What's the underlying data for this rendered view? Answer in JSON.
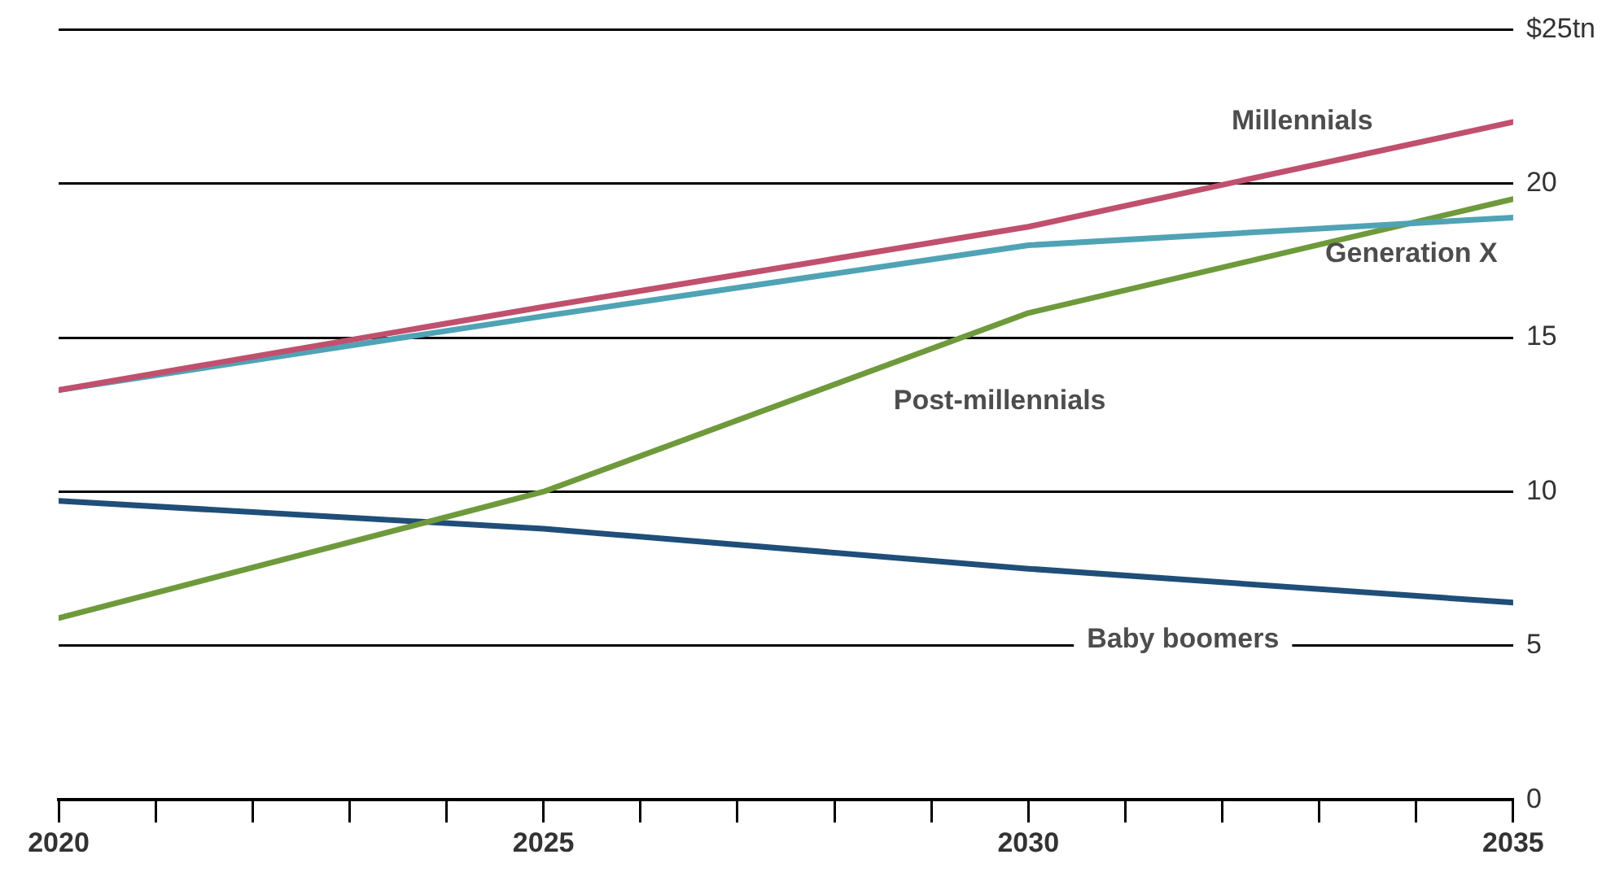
{
  "chart_data": {
    "type": "line",
    "x": [
      2020,
      2025,
      2030,
      2035
    ],
    "series": [
      {
        "name": "Millennials",
        "color": "#c0506e",
        "values": [
          13.3,
          16.0,
          18.6,
          22.0
        ]
      },
      {
        "name": "Generation X",
        "color": "#4fa3b5",
        "values": [
          13.3,
          15.7,
          18.0,
          18.9
        ]
      },
      {
        "name": "Post-millennials",
        "color": "#6f9a3c",
        "values": [
          5.9,
          10.0,
          15.8,
          19.5
        ]
      },
      {
        "name": "Baby boomers",
        "color": "#1f4e79",
        "values": [
          9.7,
          8.8,
          7.5,
          6.4
        ]
      }
    ],
    "xlim": [
      2020,
      2035
    ],
    "xticks": [
      2020,
      {
        "value": 2021,
        "label": null
      },
      {
        "value": 2022,
        "label": null
      },
      {
        "value": 2023,
        "label": null
      },
      {
        "value": 2024,
        "label": null
      },
      2025,
      {
        "value": 2026,
        "label": null
      },
      {
        "value": 2027,
        "label": null
      },
      {
        "value": 2028,
        "label": null
      },
      {
        "value": 2029,
        "label": null
      },
      2030,
      {
        "value": 2031,
        "label": null
      },
      {
        "value": 2032,
        "label": null
      },
      {
        "value": 2033,
        "label": null
      },
      {
        "value": 2034,
        "label": null
      },
      2035
    ],
    "ylim": [
      0,
      25
    ],
    "yticks": [
      0,
      5,
      10,
      15,
      20,
      {
        "value": 25,
        "label": "$25tn"
      }
    ],
    "grid": "y",
    "legend": false,
    "marker": "none"
  }
}
